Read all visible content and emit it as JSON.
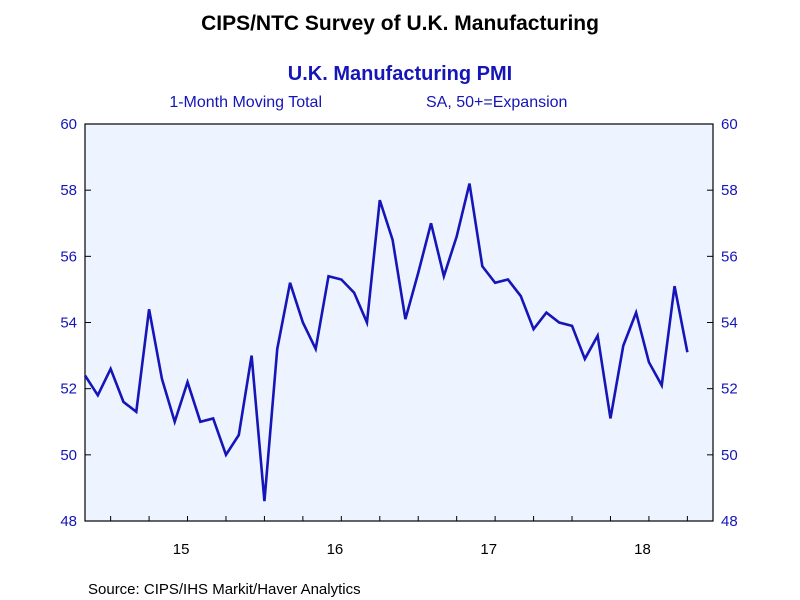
{
  "header": {
    "title": "CIPS/NTC Survey of U.K. Manufacturing"
  },
  "footer": {
    "source": "Source:  CIPS/IHS Markit/Haver Analytics"
  },
  "colors": {
    "line": "#1515b8",
    "plot_background": "#eef4ff",
    "axis_text": "#1515b8",
    "frame": "#000000"
  },
  "chart_data": {
    "type": "line",
    "title": "U.K. Manufacturing PMI",
    "subtitle_left": "1-Month Moving Total",
    "subtitle_right": "SA, 50+=Expansion",
    "xlabel": "",
    "ylabel": "",
    "ylim": [
      48,
      60
    ],
    "y_ticks": [
      48,
      50,
      52,
      54,
      56,
      58,
      60
    ],
    "x_tick_labels": [
      "15",
      "16",
      "17",
      "18"
    ],
    "right_axis": true,
    "grid": false,
    "legend": "none",
    "series": [
      {
        "x": [
          "2014-11",
          "2014-12",
          "2015-01",
          "2015-02",
          "2015-03",
          "2015-04",
          "2015-05",
          "2015-06",
          "2015-07",
          "2015-08",
          "2015-09",
          "2015-10",
          "2015-11",
          "2015-12",
          "2016-01",
          "2016-02",
          "2016-03",
          "2016-04",
          "2016-05",
          "2016-06",
          "2016-07",
          "2016-08",
          "2016-09",
          "2016-10",
          "2016-11",
          "2016-12",
          "2017-01",
          "2017-02",
          "2017-03",
          "2017-04",
          "2017-05",
          "2017-06",
          "2017-07",
          "2017-08",
          "2017-09",
          "2017-10",
          "2017-11",
          "2017-12",
          "2018-01",
          "2018-02",
          "2018-03",
          "2018-04",
          "2018-05",
          "2018-06",
          "2018-07",
          "2018-08",
          "2018-09",
          "2018-10"
        ],
        "values": [
          52.4,
          51.8,
          52.6,
          51.6,
          51.3,
          54.4,
          52.3,
          51.0,
          52.2,
          51.0,
          51.1,
          50.0,
          50.6,
          53.0,
          48.6,
          53.2,
          55.2,
          54.0,
          53.2,
          55.4,
          55.3,
          54.9,
          54.0,
          57.7,
          56.5,
          54.1,
          55.5,
          57.0,
          55.4,
          56.6,
          58.2,
          55.7,
          55.2,
          55.3,
          54.8,
          53.8,
          54.3,
          54.0,
          53.9,
          52.9,
          53.6,
          51.1,
          53.3,
          54.3,
          52.8,
          52.1,
          55.1,
          53.1
        ]
      }
    ]
  }
}
